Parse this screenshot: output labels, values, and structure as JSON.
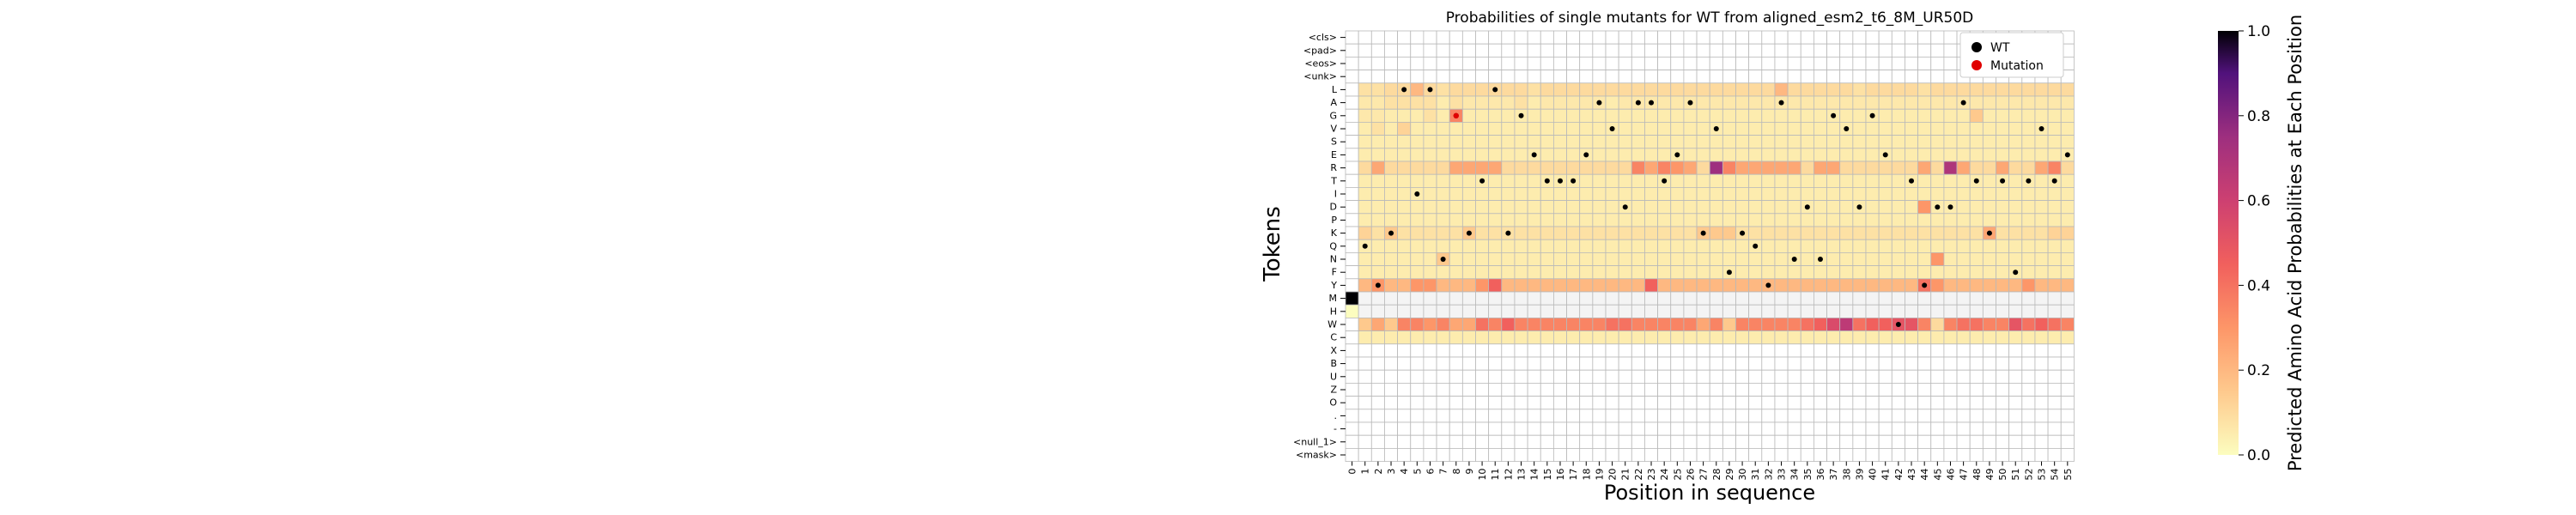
{
  "chart_data": {
    "type": "heatmap",
    "title": "Probabilities of single mutants for WT from aligned_esm2_t6_8M_UR50D",
    "xlabel": "Position in sequence",
    "ylabel": "Tokens",
    "x_ticks": [
      "0",
      "1",
      "2",
      "3",
      "4",
      "5",
      "6",
      "7",
      "8",
      "9",
      "10",
      "11",
      "12",
      "13",
      "14",
      "15",
      "16",
      "17",
      "18",
      "19",
      "20",
      "21",
      "22",
      "23",
      "24",
      "25",
      "26",
      "27",
      "28",
      "29",
      "30",
      "31",
      "32",
      "33",
      "34",
      "35",
      "36",
      "37",
      "38",
      "39",
      "40",
      "41",
      "42",
      "43",
      "44",
      "45",
      "46",
      "47",
      "48",
      "49",
      "50",
      "51",
      "52",
      "53",
      "54",
      "55"
    ],
    "y_tokens": [
      "<cls>",
      "<pad>",
      "<eos>",
      "<unk>",
      "L",
      "A",
      "G",
      "V",
      "S",
      "E",
      "R",
      "T",
      "I",
      "D",
      "P",
      "K",
      "Q",
      "N",
      "F",
      "Y",
      "M",
      "H",
      "W",
      "C",
      "X",
      "B",
      "U",
      "Z",
      "O",
      ".",
      "-",
      "<null_1>",
      "<mask>"
    ],
    "colorbar": {
      "label": "Predicted Amino Acid Probabilities at Each Position",
      "ticks": [
        "0.0",
        "0.2",
        "0.4",
        "0.6",
        "0.8",
        "1.0"
      ],
      "range": [
        0,
        1
      ],
      "colormap": "magma_r"
    },
    "legend": {
      "placement": "top-right",
      "items": [
        {
          "label": "WT",
          "color": "#000000"
        },
        {
          "label": "Mutation",
          "color": "#e00000"
        }
      ]
    },
    "wt_sequence": [
      "M",
      "Q",
      "Y",
      "K",
      "L",
      "I",
      "L",
      "N",
      "G",
      "K",
      "T",
      "L",
      "K",
      "G",
      "E",
      "T",
      "T",
      "T",
      "E",
      "A",
      "V",
      "D",
      "A",
      "A",
      "T",
      "E",
      "A",
      "K",
      "V",
      "F",
      "K",
      "Q",
      "Y",
      "A",
      "N",
      "D",
      "N",
      "G",
      "V",
      "D",
      "G",
      "E",
      "W",
      "T",
      "Y",
      "D",
      "D",
      "A",
      "T",
      "K",
      "T",
      "F",
      "T",
      "V",
      "T",
      "E"
    ],
    "mutation": {
      "position": 8,
      "token": "G"
    },
    "probabilities": {
      "L": [
        0.0,
        0.08,
        0.08,
        0.1,
        0.1,
        0.2,
        0.1,
        0.08,
        0.1,
        0.1,
        0.1,
        0.1,
        0.1,
        0.1,
        0.08,
        0.1,
        0.1,
        0.1,
        0.1,
        0.1,
        0.1,
        0.1,
        0.1,
        0.1,
        0.1,
        0.1,
        0.1,
        0.1,
        0.1,
        0.1,
        0.1,
        0.1,
        0.1,
        0.2,
        0.1,
        0.1,
        0.1,
        0.1,
        0.1,
        0.08,
        0.1,
        0.1,
        0.1,
        0.1,
        0.08,
        0.1,
        0.1,
        0.1,
        0.1,
        0.1,
        0.1,
        0.1,
        0.1,
        0.1,
        0.1,
        0.1
      ],
      "A": [
        0.0,
        0.06,
        0.06,
        0.08,
        0.08,
        0.08,
        0.08,
        0.05,
        0.08,
        0.06,
        0.06,
        0.06,
        0.06,
        0.08,
        0.05,
        0.06,
        0.06,
        0.06,
        0.06,
        0.06,
        0.05,
        0.06,
        0.06,
        0.06,
        0.06,
        0.06,
        0.06,
        0.06,
        0.06,
        0.06,
        0.06,
        0.06,
        0.06,
        0.06,
        0.06,
        0.06,
        0.06,
        0.06,
        0.06,
        0.06,
        0.06,
        0.06,
        0.06,
        0.06,
        0.06,
        0.06,
        0.06,
        0.06,
        0.06,
        0.06,
        0.06,
        0.06,
        0.06,
        0.06,
        0.06,
        0.06
      ],
      "G": [
        0.0,
        0.06,
        0.06,
        0.05,
        0.05,
        0.05,
        0.08,
        0.05,
        0.35,
        0.05,
        0.05,
        0.05,
        0.05,
        0.05,
        0.05,
        0.05,
        0.05,
        0.05,
        0.05,
        0.05,
        0.05,
        0.05,
        0.05,
        0.05,
        0.05,
        0.05,
        0.05,
        0.05,
        0.05,
        0.05,
        0.05,
        0.05,
        0.05,
        0.05,
        0.05,
        0.05,
        0.05,
        0.05,
        0.05,
        0.05,
        0.05,
        0.05,
        0.05,
        0.05,
        0.05,
        0.05,
        0.05,
        0.05,
        0.15,
        0.05,
        0.05,
        0.05,
        0.05,
        0.05,
        0.05,
        0.05
      ],
      "V": [
        0.0,
        0.05,
        0.08,
        0.05,
        0.12,
        0.05,
        0.05,
        0.05,
        0.05,
        0.05,
        0.05,
        0.05,
        0.05,
        0.05,
        0.05,
        0.05,
        0.05,
        0.05,
        0.05,
        0.05,
        0.05,
        0.05,
        0.05,
        0.05,
        0.05,
        0.05,
        0.05,
        0.05,
        0.05,
        0.05,
        0.05,
        0.05,
        0.05,
        0.05,
        0.05,
        0.05,
        0.05,
        0.05,
        0.05,
        0.05,
        0.05,
        0.05,
        0.05,
        0.05,
        0.05,
        0.05,
        0.05,
        0.05,
        0.05,
        0.05,
        0.05,
        0.05,
        0.05,
        0.05,
        0.05,
        0.05
      ],
      "S": [
        0.0,
        0.05,
        0.05,
        0.05,
        0.05,
        0.05,
        0.05,
        0.05,
        0.05,
        0.05,
        0.05,
        0.05,
        0.05,
        0.05,
        0.05,
        0.05,
        0.05,
        0.05,
        0.05,
        0.05,
        0.05,
        0.05,
        0.05,
        0.05,
        0.05,
        0.05,
        0.05,
        0.05,
        0.05,
        0.05,
        0.05,
        0.05,
        0.05,
        0.05,
        0.05,
        0.05,
        0.05,
        0.05,
        0.05,
        0.05,
        0.05,
        0.05,
        0.05,
        0.05,
        0.05,
        0.05,
        0.05,
        0.05,
        0.05,
        0.05,
        0.05,
        0.05,
        0.05,
        0.05,
        0.05,
        0.05
      ],
      "E": [
        0.0,
        0.05,
        0.05,
        0.05,
        0.05,
        0.05,
        0.05,
        0.05,
        0.05,
        0.05,
        0.05,
        0.05,
        0.05,
        0.05,
        0.05,
        0.05,
        0.05,
        0.05,
        0.05,
        0.05,
        0.05,
        0.05,
        0.05,
        0.05,
        0.05,
        0.05,
        0.05,
        0.05,
        0.05,
        0.05,
        0.05,
        0.05,
        0.05,
        0.05,
        0.05,
        0.05,
        0.05,
        0.05,
        0.05,
        0.05,
        0.05,
        0.05,
        0.05,
        0.05,
        0.05,
        0.05,
        0.05,
        0.05,
        0.05,
        0.05,
        0.05,
        0.05,
        0.05,
        0.05,
        0.05,
        0.05
      ],
      "R": [
        0.0,
        0.1,
        0.25,
        0.1,
        0.1,
        0.1,
        0.1,
        0.1,
        0.25,
        0.25,
        0.25,
        0.25,
        0.1,
        0.1,
        0.1,
        0.1,
        0.1,
        0.1,
        0.1,
        0.1,
        0.1,
        0.1,
        0.35,
        0.25,
        0.35,
        0.3,
        0.25,
        0.1,
        0.75,
        0.35,
        0.25,
        0.25,
        0.25,
        0.25,
        0.25,
        0.1,
        0.25,
        0.25,
        0.1,
        0.1,
        0.1,
        0.1,
        0.1,
        0.1,
        0.25,
        0.1,
        0.7,
        0.25,
        0.1,
        0.1,
        0.25,
        0.1,
        0.1,
        0.25,
        0.35,
        0.1
      ],
      "T": [
        0.0,
        0.05,
        0.05,
        0.05,
        0.05,
        0.05,
        0.05,
        0.05,
        0.05,
        0.05,
        0.05,
        0.05,
        0.05,
        0.05,
        0.05,
        0.05,
        0.05,
        0.05,
        0.05,
        0.05,
        0.05,
        0.05,
        0.05,
        0.05,
        0.05,
        0.05,
        0.05,
        0.05,
        0.05,
        0.05,
        0.05,
        0.05,
        0.05,
        0.05,
        0.05,
        0.05,
        0.05,
        0.05,
        0.05,
        0.05,
        0.05,
        0.05,
        0.05,
        0.05,
        0.05,
        0.05,
        0.05,
        0.05,
        0.05,
        0.05,
        0.05,
        0.05,
        0.05,
        0.05,
        0.05,
        0.05
      ],
      "I": [
        0.0,
        0.05,
        0.05,
        0.05,
        0.05,
        0.05,
        0.05,
        0.05,
        0.05,
        0.05,
        0.05,
        0.05,
        0.05,
        0.05,
        0.05,
        0.05,
        0.05,
        0.05,
        0.05,
        0.05,
        0.05,
        0.05,
        0.05,
        0.05,
        0.05,
        0.05,
        0.05,
        0.05,
        0.05,
        0.05,
        0.05,
        0.05,
        0.05,
        0.05,
        0.05,
        0.05,
        0.05,
        0.05,
        0.05,
        0.05,
        0.05,
        0.05,
        0.05,
        0.05,
        0.05,
        0.05,
        0.05,
        0.05,
        0.05,
        0.05,
        0.05,
        0.05,
        0.05,
        0.05,
        0.05,
        0.05
      ],
      "D": [
        0.0,
        0.05,
        0.05,
        0.05,
        0.05,
        0.05,
        0.05,
        0.05,
        0.05,
        0.05,
        0.05,
        0.05,
        0.05,
        0.05,
        0.05,
        0.05,
        0.05,
        0.05,
        0.05,
        0.05,
        0.05,
        0.05,
        0.05,
        0.05,
        0.05,
        0.05,
        0.05,
        0.05,
        0.05,
        0.05,
        0.05,
        0.05,
        0.05,
        0.05,
        0.05,
        0.05,
        0.05,
        0.05,
        0.05,
        0.05,
        0.05,
        0.05,
        0.05,
        0.05,
        0.3,
        0.05,
        0.05,
        0.05,
        0.05,
        0.05,
        0.05,
        0.05,
        0.05,
        0.05,
        0.05,
        0.05
      ],
      "P": [
        0.0,
        0.05,
        0.05,
        0.05,
        0.05,
        0.05,
        0.05,
        0.05,
        0.05,
        0.05,
        0.05,
        0.05,
        0.05,
        0.05,
        0.05,
        0.05,
        0.05,
        0.05,
        0.05,
        0.05,
        0.05,
        0.05,
        0.05,
        0.05,
        0.05,
        0.05,
        0.05,
        0.05,
        0.05,
        0.05,
        0.05,
        0.05,
        0.05,
        0.05,
        0.05,
        0.05,
        0.05,
        0.05,
        0.05,
        0.05,
        0.05,
        0.05,
        0.05,
        0.05,
        0.05,
        0.05,
        0.05,
        0.05,
        0.05,
        0.05,
        0.05,
        0.05,
        0.05,
        0.05,
        0.05,
        0.05
      ],
      "K": [
        0.0,
        0.12,
        0.08,
        0.15,
        0.08,
        0.08,
        0.08,
        0.08,
        0.08,
        0.15,
        0.08,
        0.08,
        0.08,
        0.08,
        0.08,
        0.08,
        0.08,
        0.08,
        0.08,
        0.08,
        0.08,
        0.08,
        0.08,
        0.08,
        0.08,
        0.08,
        0.08,
        0.15,
        0.15,
        0.15,
        0.08,
        0.08,
        0.08,
        0.08,
        0.08,
        0.08,
        0.08,
        0.08,
        0.08,
        0.08,
        0.08,
        0.08,
        0.08,
        0.08,
        0.08,
        0.08,
        0.08,
        0.08,
        0.08,
        0.25,
        0.08,
        0.08,
        0.08,
        0.08,
        0.12,
        0.12
      ],
      "Q": [
        0.0,
        0.05,
        0.05,
        0.05,
        0.05,
        0.05,
        0.05,
        0.05,
        0.05,
        0.05,
        0.05,
        0.05,
        0.05,
        0.05,
        0.05,
        0.05,
        0.05,
        0.05,
        0.05,
        0.05,
        0.05,
        0.05,
        0.05,
        0.05,
        0.05,
        0.05,
        0.05,
        0.05,
        0.05,
        0.05,
        0.05,
        0.05,
        0.05,
        0.05,
        0.05,
        0.05,
        0.05,
        0.05,
        0.05,
        0.05,
        0.05,
        0.05,
        0.05,
        0.05,
        0.05,
        0.05,
        0.05,
        0.05,
        0.05,
        0.05,
        0.05,
        0.05,
        0.05,
        0.05,
        0.05,
        0.05
      ],
      "N": [
        0.0,
        0.05,
        0.05,
        0.05,
        0.05,
        0.05,
        0.05,
        0.15,
        0.05,
        0.05,
        0.05,
        0.05,
        0.05,
        0.05,
        0.05,
        0.05,
        0.05,
        0.05,
        0.05,
        0.05,
        0.05,
        0.05,
        0.05,
        0.05,
        0.05,
        0.05,
        0.05,
        0.05,
        0.05,
        0.05,
        0.05,
        0.05,
        0.05,
        0.05,
        0.05,
        0.05,
        0.05,
        0.05,
        0.05,
        0.05,
        0.05,
        0.05,
        0.05,
        0.05,
        0.05,
        0.3,
        0.05,
        0.05,
        0.05,
        0.05,
        0.05,
        0.05,
        0.05,
        0.05,
        0.05,
        0.05
      ],
      "F": [
        0.0,
        0.05,
        0.05,
        0.05,
        0.05,
        0.05,
        0.05,
        0.05,
        0.05,
        0.05,
        0.05,
        0.05,
        0.05,
        0.05,
        0.05,
        0.05,
        0.05,
        0.05,
        0.05,
        0.05,
        0.05,
        0.05,
        0.05,
        0.05,
        0.05,
        0.05,
        0.05,
        0.05,
        0.05,
        0.05,
        0.05,
        0.05,
        0.05,
        0.05,
        0.05,
        0.05,
        0.05,
        0.05,
        0.05,
        0.05,
        0.05,
        0.05,
        0.05,
        0.05,
        0.05,
        0.05,
        0.05,
        0.05,
        0.05,
        0.05,
        0.05,
        0.05,
        0.05,
        0.05,
        0.05,
        0.05
      ],
      "Y": [
        0.0,
        0.2,
        0.3,
        0.2,
        0.2,
        0.3,
        0.3,
        0.2,
        0.2,
        0.2,
        0.3,
        0.45,
        0.2,
        0.2,
        0.2,
        0.2,
        0.2,
        0.2,
        0.2,
        0.2,
        0.2,
        0.2,
        0.2,
        0.45,
        0.2,
        0.2,
        0.2,
        0.2,
        0.2,
        0.2,
        0.2,
        0.2,
        0.2,
        0.2,
        0.2,
        0.2,
        0.2,
        0.2,
        0.2,
        0.2,
        0.2,
        0.2,
        0.2,
        0.2,
        0.4,
        0.3,
        0.2,
        0.2,
        0.2,
        0.2,
        0.2,
        0.2,
        0.3,
        0.2,
        0.2,
        0.2
      ],
      "M": [
        1.0,
        0.0,
        0.0,
        0.0,
        0.0,
        0.0,
        0.0,
        0.0,
        0.0,
        0.0,
        0.0,
        0.0,
        0.0,
        0.0,
        0.0,
        0.0,
        0.0,
        0.0,
        0.0,
        0.0,
        0.0,
        0.0,
        0.0,
        0.0,
        0.0,
        0.0,
        0.0,
        0.0,
        0.0,
        0.0,
        0.0,
        0.0,
        0.0,
        0.0,
        0.0,
        0.0,
        0.0,
        0.0,
        0.0,
        0.0,
        0.0,
        0.0,
        0.0,
        0.0,
        0.0,
        0.0,
        0.0,
        0.0,
        0.0,
        0.0,
        0.0,
        0.0,
        0.0,
        0.0,
        0.0,
        0.0
      ],
      "H": [
        0.0,
        0.0,
        0.0,
        0.0,
        0.0,
        0.0,
        0.0,
        0.0,
        0.0,
        0.0,
        0.0,
        0.0,
        0.0,
        0.0,
        0.0,
        0.0,
        0.0,
        0.0,
        0.0,
        0.0,
        0.0,
        0.0,
        0.0,
        0.0,
        0.0,
        0.0,
        0.0,
        0.0,
        0.0,
        0.0,
        0.0,
        0.0,
        0.0,
        0.0,
        0.0,
        0.0,
        0.0,
        0.0,
        0.0,
        0.0,
        0.0,
        0.0,
        0.0,
        0.0,
        0.0,
        0.0,
        0.0,
        0.0,
        0.0,
        0.0,
        0.0,
        0.0,
        0.0,
        0.0,
        0.0,
        0.0
      ],
      "W": [
        0.0,
        0.15,
        0.25,
        0.15,
        0.35,
        0.35,
        0.3,
        0.35,
        0.25,
        0.25,
        0.4,
        0.35,
        0.45,
        0.35,
        0.35,
        0.35,
        0.35,
        0.35,
        0.35,
        0.35,
        0.4,
        0.4,
        0.35,
        0.35,
        0.35,
        0.35,
        0.35,
        0.25,
        0.35,
        0.15,
        0.35,
        0.35,
        0.35,
        0.35,
        0.35,
        0.4,
        0.45,
        0.55,
        0.65,
        0.4,
        0.45,
        0.45,
        0.5,
        0.5,
        0.35,
        0.1,
        0.35,
        0.4,
        0.4,
        0.35,
        0.35,
        0.5,
        0.4,
        0.45,
        0.4,
        0.35
      ],
      "C": [
        0.0,
        0.05,
        0.05,
        0.05,
        0.05,
        0.05,
        0.05,
        0.05,
        0.05,
        0.05,
        0.05,
        0.05,
        0.05,
        0.05,
        0.05,
        0.05,
        0.05,
        0.05,
        0.05,
        0.05,
        0.05,
        0.05,
        0.05,
        0.05,
        0.05,
        0.05,
        0.05,
        0.05,
        0.05,
        0.05,
        0.05,
        0.05,
        0.05,
        0.05,
        0.05,
        0.05,
        0.05,
        0.05,
        0.05,
        0.05,
        0.05,
        0.05,
        0.05,
        0.05,
        0.05,
        0.05,
        0.05,
        0.05,
        0.05,
        0.05,
        0.05,
        0.05,
        0.05,
        0.05,
        0.05,
        0.05
      ]
    }
  }
}
